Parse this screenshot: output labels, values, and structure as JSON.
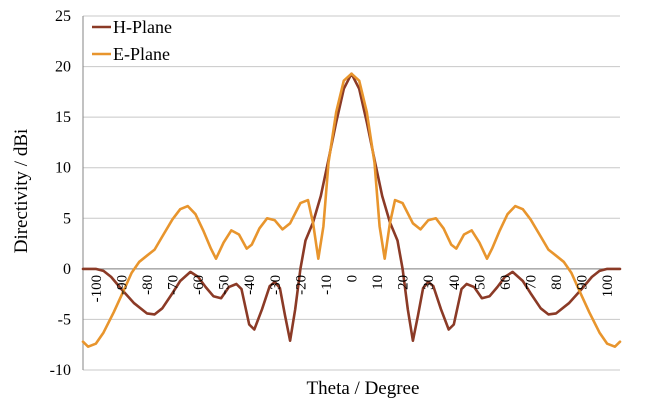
{
  "chart_data": {
    "type": "line",
    "title": "",
    "xlabel": "Theta / Degree",
    "ylabel": "Directivity / dBi",
    "xlim": [
      -105,
      105
    ],
    "ylim": [
      -10,
      25
    ],
    "xticks": [
      -100,
      -90,
      -80,
      -70,
      -60,
      -50,
      -40,
      -30,
      -20,
      -10,
      0,
      10,
      20,
      30,
      40,
      50,
      60,
      70,
      80,
      90,
      100
    ],
    "yticks": [
      -10,
      -5,
      0,
      5,
      10,
      15,
      20,
      25
    ],
    "grid": "horizontal",
    "legend_position": "top-left",
    "series": [
      {
        "name": "H-Plane",
        "color": "#8b3a26",
        "points": [
          [
            -105,
            0
          ],
          [
            -100,
            0
          ],
          [
            -97,
            -0.2
          ],
          [
            -94,
            -0.8
          ],
          [
            -90,
            -2.0
          ],
          [
            -85,
            -3.4
          ],
          [
            -80,
            -4.4
          ],
          [
            -77,
            -4.5
          ],
          [
            -74,
            -3.9
          ],
          [
            -70,
            -2.4
          ],
          [
            -67,
            -1.2
          ],
          [
            -63,
            -0.3
          ],
          [
            -60,
            -0.8
          ],
          [
            -57,
            -1.8
          ],
          [
            -54,
            -2.7
          ],
          [
            -51,
            -2.9
          ],
          [
            -48,
            -1.8
          ],
          [
            -45,
            -1.5
          ],
          [
            -43,
            -2.0
          ],
          [
            -40,
            -5.5
          ],
          [
            -38,
            -6.0
          ],
          [
            -35,
            -4.0
          ],
          [
            -32,
            -1.7
          ],
          [
            -30,
            -1.3
          ],
          [
            -28,
            -1.9
          ],
          [
            -26,
            -4.6
          ],
          [
            -24,
            -7.1
          ],
          [
            -22,
            -4.0
          ],
          [
            -20,
            0.0
          ],
          [
            -18,
            2.8
          ],
          [
            -15,
            4.6
          ],
          [
            -12,
            7.2
          ],
          [
            -9,
            10.8
          ],
          [
            -6,
            14.5
          ],
          [
            -3,
            17.8
          ],
          [
            0,
            19.3
          ],
          [
            3,
            17.8
          ],
          [
            6,
            14.5
          ],
          [
            9,
            10.8
          ],
          [
            12,
            7.2
          ],
          [
            15,
            4.6
          ],
          [
            18,
            2.8
          ],
          [
            20,
            0.0
          ],
          [
            22,
            -4.0
          ],
          [
            24,
            -7.1
          ],
          [
            26,
            -4.6
          ],
          [
            28,
            -1.9
          ],
          [
            30,
            -1.3
          ],
          [
            32,
            -1.7
          ],
          [
            35,
            -4.0
          ],
          [
            38,
            -6.0
          ],
          [
            40,
            -5.5
          ],
          [
            43,
            -2.0
          ],
          [
            45,
            -1.5
          ],
          [
            48,
            -1.8
          ],
          [
            51,
            -2.9
          ],
          [
            54,
            -2.7
          ],
          [
            57,
            -1.8
          ],
          [
            60,
            -0.8
          ],
          [
            63,
            -0.3
          ],
          [
            67,
            -1.2
          ],
          [
            70,
            -2.4
          ],
          [
            74,
            -3.9
          ],
          [
            77,
            -4.5
          ],
          [
            80,
            -4.4
          ],
          [
            85,
            -3.4
          ],
          [
            90,
            -2.0
          ],
          [
            94,
            -0.8
          ],
          [
            97,
            -0.2
          ],
          [
            100,
            0
          ],
          [
            105,
            0
          ]
        ]
      },
      {
        "name": "E-Plane",
        "color": "#e8952d",
        "points": [
          [
            -105,
            -7.2
          ],
          [
            -103,
            -7.7
          ],
          [
            -100,
            -7.4
          ],
          [
            -97,
            -6.3
          ],
          [
            -93,
            -4.3
          ],
          [
            -89,
            -2.1
          ],
          [
            -86,
            -0.4
          ],
          [
            -83,
            0.7
          ],
          [
            -80,
            1.3
          ],
          [
            -77,
            1.9
          ],
          [
            -74,
            3.2
          ],
          [
            -70,
            4.9
          ],
          [
            -67,
            5.9
          ],
          [
            -64,
            6.2
          ],
          [
            -61,
            5.4
          ],
          [
            -58,
            3.8
          ],
          [
            -55,
            2.0
          ],
          [
            -53,
            1.0
          ],
          [
            -50,
            2.6
          ],
          [
            -47,
            3.8
          ],
          [
            -44,
            3.4
          ],
          [
            -41,
            2.0
          ],
          [
            -39,
            2.4
          ],
          [
            -36,
            4.0
          ],
          [
            -33,
            5.0
          ],
          [
            -30,
            4.8
          ],
          [
            -27,
            3.9
          ],
          [
            -24,
            4.5
          ],
          [
            -20,
            6.5
          ],
          [
            -17,
            6.8
          ],
          [
            -15,
            4.5
          ],
          [
            -13,
            1.0
          ],
          [
            -11,
            4.2
          ],
          [
            -9,
            10.5
          ],
          [
            -6,
            15.5
          ],
          [
            -3,
            18.6
          ],
          [
            0,
            19.3
          ],
          [
            3,
            18.6
          ],
          [
            6,
            15.5
          ],
          [
            9,
            10.5
          ],
          [
            11,
            4.2
          ],
          [
            13,
            1.0
          ],
          [
            15,
            4.5
          ],
          [
            17,
            6.8
          ],
          [
            20,
            6.5
          ],
          [
            24,
            4.5
          ],
          [
            27,
            3.9
          ],
          [
            30,
            4.8
          ],
          [
            33,
            5.0
          ],
          [
            36,
            4.0
          ],
          [
            39,
            2.4
          ],
          [
            41,
            2.0
          ],
          [
            44,
            3.4
          ],
          [
            47,
            3.8
          ],
          [
            50,
            2.6
          ],
          [
            53,
            1.0
          ],
          [
            55,
            2.0
          ],
          [
            58,
            3.8
          ],
          [
            61,
            5.4
          ],
          [
            64,
            6.2
          ],
          [
            67,
            5.9
          ],
          [
            70,
            4.9
          ],
          [
            74,
            3.2
          ],
          [
            77,
            1.9
          ],
          [
            80,
            1.3
          ],
          [
            83,
            0.7
          ],
          [
            86,
            -0.4
          ],
          [
            89,
            -2.1
          ],
          [
            93,
            -4.3
          ],
          [
            97,
            -6.3
          ],
          [
            100,
            -7.4
          ],
          [
            103,
            -7.7
          ],
          [
            105,
            -7.2
          ]
        ]
      }
    ]
  }
}
